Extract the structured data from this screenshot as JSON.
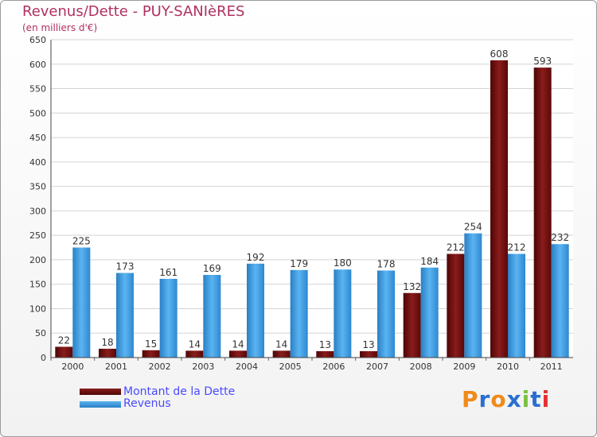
{
  "title": "Revenus/Dette - PUY-SANIèRES",
  "subtitle": "(en milliers d'€)",
  "colors": {
    "dette": "#7a1010",
    "revenus": "#3d9ee6",
    "title": "#b03060",
    "legend_text": "#4a4aff"
  },
  "logo": {
    "text": "Proxiti",
    "letters": [
      "P",
      "r",
      "o",
      "x",
      "i",
      "t",
      "i"
    ],
    "colors": [
      "#f08a1a",
      "#2a6fd0",
      "#f08a1a",
      "#2a6fd0",
      "#7ac142",
      "#2a6fd0",
      "#e53030"
    ]
  },
  "chart_data": {
    "type": "bar",
    "title": "Revenus/Dette - PUY-SANIèRES",
    "subtitle": "(en milliers d'€)",
    "categories": [
      "2000",
      "2001",
      "2002",
      "2003",
      "2004",
      "2005",
      "2006",
      "2007",
      "2008",
      "2009",
      "2010",
      "2011"
    ],
    "series": [
      {
        "name": "Montant de la Dette",
        "values": [
          22,
          18,
          15,
          14,
          14,
          14,
          13,
          13,
          132,
          212,
          608,
          593
        ]
      },
      {
        "name": "Revenus",
        "values": [
          225,
          173,
          161,
          169,
          192,
          179,
          180,
          178,
          184,
          254,
          212,
          232
        ]
      }
    ],
    "ylim": [
      0,
      650
    ],
    "yticks": [
      0,
      50,
      100,
      150,
      200,
      250,
      300,
      350,
      400,
      450,
      500,
      550,
      600,
      650
    ],
    "grid": true,
    "legend": "bottom-left"
  }
}
